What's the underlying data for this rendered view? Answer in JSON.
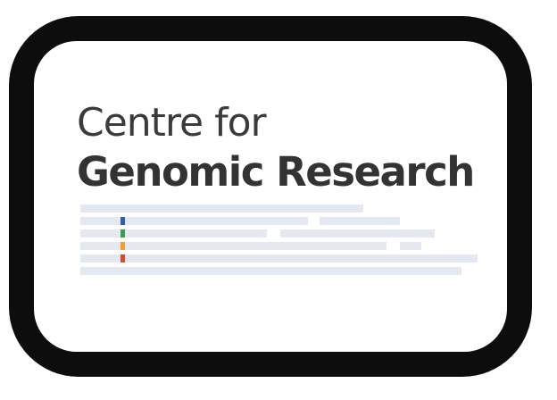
{
  "logo": {
    "line1": "Centre for",
    "line2": "Genomic Research"
  },
  "graphic": {
    "bar_color": "#e4e8f0",
    "marker_colors": [
      "#2f5fb3",
      "#3f9a4d",
      "#f0a030",
      "#d64a2e"
    ]
  },
  "colors": {
    "frame": "#0d0d0d",
    "text": "#3b3b3b",
    "background": "#ffffff"
  }
}
